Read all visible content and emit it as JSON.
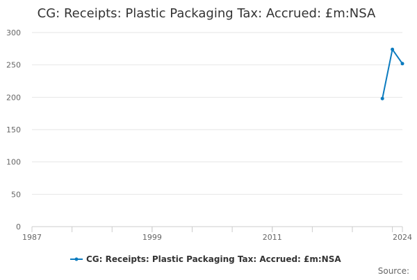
{
  "chart_data": {
    "type": "line",
    "title": "CG: Receipts: Plastic Packaging Tax: Accrued: £m:NSA",
    "xlabel": "",
    "ylabel": "",
    "x_range": [
      1987,
      2024
    ],
    "xticks": [
      1987,
      1999,
      2011,
      2024
    ],
    "yticks": [
      0,
      50,
      100,
      150,
      200,
      250,
      300
    ],
    "ylim": [
      0,
      300
    ],
    "grid": "horizontal",
    "legend_position": "bottom",
    "series": [
      {
        "name": "CG: Receipts: Plastic Packaging Tax: Accrued: £m:NSA",
        "color": "#0b7bbf",
        "x": [
          2022,
          2023,
          2024
        ],
        "y": [
          198,
          274,
          252
        ]
      }
    ]
  },
  "source_label": "Source:"
}
